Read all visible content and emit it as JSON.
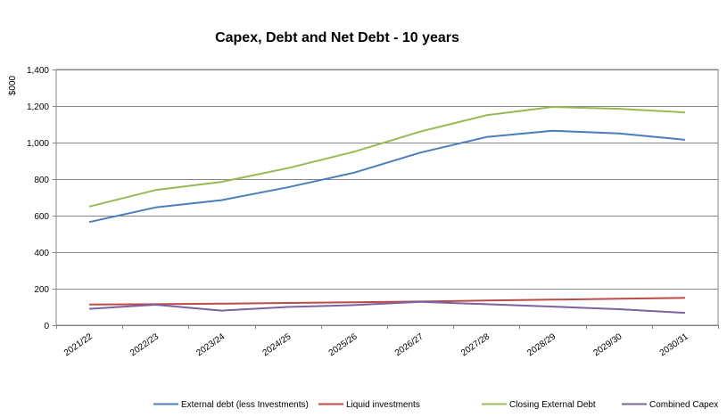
{
  "chart_data": {
    "type": "line",
    "title": "Capex, Debt and Net Debt - 10 years",
    "xlabel": "",
    "ylabel": "$000",
    "ylim": [
      0,
      1400
    ],
    "yticks": [
      0,
      200,
      400,
      600,
      800,
      1000,
      1200,
      1400
    ],
    "ytick_labels": [
      "0",
      "200",
      "400",
      "600",
      "800",
      "1,000",
      "1,200",
      "1,400"
    ],
    "categories": [
      "2021/22",
      "2022/23",
      "2023/24",
      "2024/25",
      "2025/26",
      "2026/27",
      "2027/28",
      "2028/29",
      "2029/30",
      "2030/31"
    ],
    "grid": true,
    "legend_position": "bottom",
    "series": [
      {
        "name": "External debt (less Investments)",
        "color": "#4a7ebb",
        "values": [
          565,
          645,
          685,
          755,
          835,
          945,
          1030,
          1065,
          1050,
          1015
        ]
      },
      {
        "name": "Liquid investments",
        "color": "#be4b48",
        "values": [
          113,
          115,
          118,
          122,
          126,
          130,
          135,
          140,
          145,
          150
        ]
      },
      {
        "name": "Closing External Debt",
        "color": "#98b954",
        "values": [
          650,
          740,
          785,
          860,
          950,
          1060,
          1150,
          1195,
          1185,
          1165
        ]
      },
      {
        "name": "Combined Capex",
        "color": "#7d60a0",
        "values": [
          90,
          112,
          80,
          100,
          110,
          128,
          115,
          102,
          88,
          68
        ]
      }
    ]
  }
}
